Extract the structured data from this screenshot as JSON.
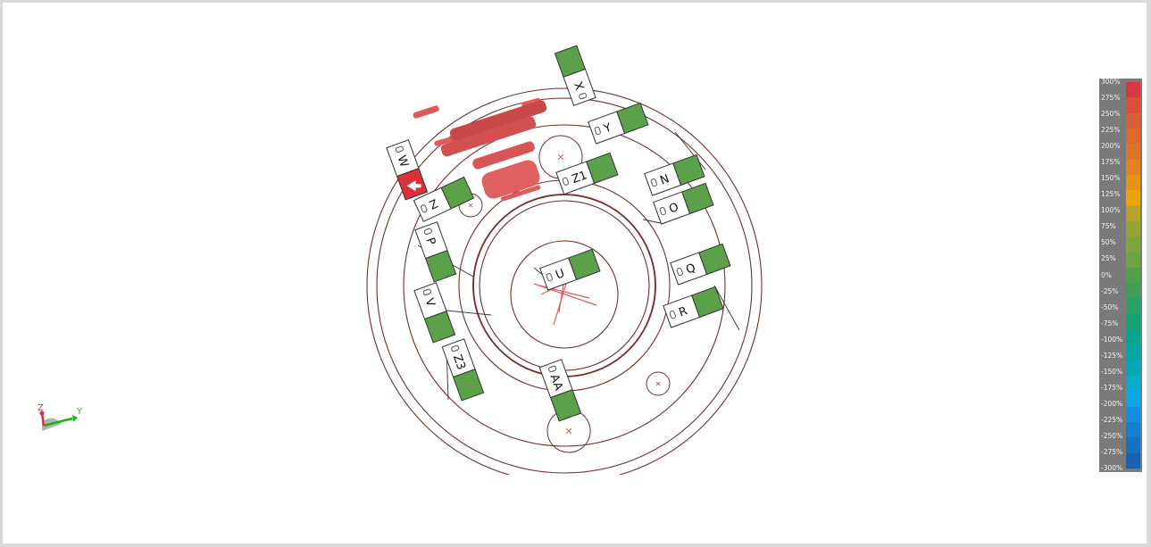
{
  "tags": [
    {
      "id": "tag-x",
      "label": "X"
    },
    {
      "id": "tag-y",
      "label": "Y"
    },
    {
      "id": "tag-w",
      "label": "W"
    },
    {
      "id": "tag-z1",
      "label": "Z1"
    },
    {
      "id": "tag-n",
      "label": "N"
    },
    {
      "id": "tag-z",
      "label": "Z"
    },
    {
      "id": "tag-o",
      "label": "O"
    },
    {
      "id": "tag-p",
      "label": "P"
    },
    {
      "id": "tag-u",
      "label": "U"
    },
    {
      "id": "tag-q",
      "label": "Q"
    },
    {
      "id": "tag-v",
      "label": "V"
    },
    {
      "id": "tag-r",
      "label": "R"
    },
    {
      "id": "tag-z3",
      "label": "Z3"
    },
    {
      "id": "tag-aa",
      "label": "AA"
    }
  ],
  "legend": {
    "labels": [
      "300%",
      "275%",
      "250%",
      "225%",
      "200%",
      "175%",
      "150%",
      "125%",
      "100%",
      "75%",
      "50%",
      "25%",
      "0%",
      "-25%",
      "-50%",
      "-75%",
      "-100%",
      "-125%",
      "-150%",
      "-175%",
      "-200%",
      "-225%",
      "-250%",
      "-275%",
      "-300%"
    ],
    "colors": [
      "#d93840",
      "#d9503a",
      "#da5f34",
      "#dc6a2e",
      "#de7428",
      "#e28222",
      "#e69418",
      "#e8a60e",
      "#b4a52a",
      "#94a332",
      "#7ea53c",
      "#6aa443",
      "#52a04a",
      "#3f9f56",
      "#2aa064",
      "#17a276",
      "#06a68a",
      "#00a8a2",
      "#00a8b8",
      "#0aaad0",
      "#0fa6e6",
      "#148ee0",
      "#1580d0",
      "#1672c0",
      "#1763b0"
    ]
  },
  "triad": {
    "z_label": "Z",
    "y_label": "Y"
  },
  "colors": {
    "wire": "#7a2a2a",
    "accent": "#e05a5a",
    "green": "#5aa14a",
    "tag_red": "#d9303a"
  }
}
